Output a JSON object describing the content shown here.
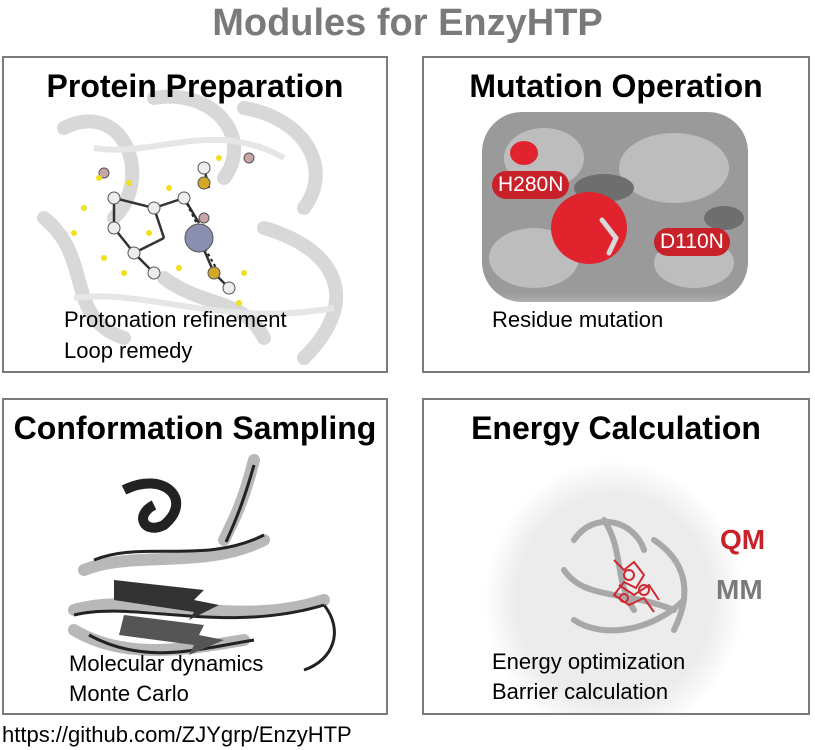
{
  "title": "Modules for EnzyHTP",
  "panels": [
    {
      "title": "Protein Preparation",
      "lines": [
        "Protonation refinement",
        "Loop remedy"
      ]
    },
    {
      "title": "Mutation Operation",
      "lines": [
        "Residue mutation"
      ],
      "tags": [
        "H280N",
        "D110N"
      ]
    },
    {
      "title": "Conformation Sampling",
      "lines": [
        "Molecular dynamics",
        "Monte Carlo"
      ]
    },
    {
      "title": "Energy Calculation",
      "lines": [
        "Energy optimization",
        "Barrier calculation"
      ],
      "legend": {
        "qm": "QM",
        "mm": "MM"
      }
    }
  ],
  "footer": "https://github.com/ZJYgrp/EnzyHTP",
  "colors": {
    "accent_red": "#c9212a",
    "title_gray": "#7a7a7a",
    "border_gray": "#7b7b7b"
  }
}
